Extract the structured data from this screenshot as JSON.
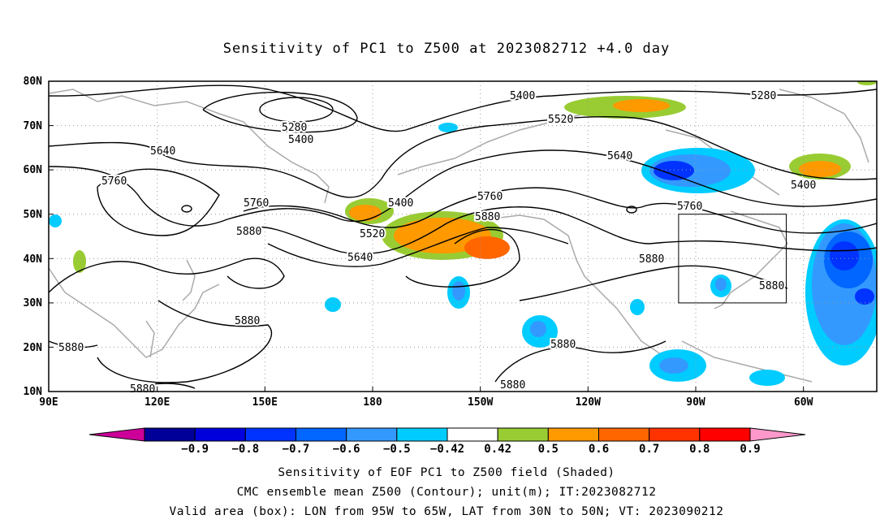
{
  "title": "Sensitivity of PC1 to Z500 at 2023082712 +4.0 day",
  "map": {
    "lat_labels": [
      "80N",
      "70N",
      "60N",
      "50N",
      "40N",
      "30N",
      "20N",
      "10N"
    ],
    "lon_labels": [
      "90E",
      "120E",
      "150E",
      "180",
      "150W",
      "120W",
      "90W",
      "60W"
    ],
    "contour_labels": [
      "5400",
      "5280",
      "5400",
      "5520",
      "5280",
      "5640",
      "5760",
      "5640",
      "5760",
      "5400",
      "5760",
      "5880",
      "5880",
      "5520",
      "5640",
      "5760",
      "5400",
      "5880",
      "5880",
      "5880",
      "5880",
      "5880",
      "5880",
      "5880"
    ],
    "box": {
      "lon_from": "95W",
      "lon_to": "65W",
      "lat_from": "30N",
      "lat_to": "50N"
    }
  },
  "colorbar": {
    "labels": [
      "-0.9",
      "-0.8",
      "-0.7",
      "-0.6",
      "-0.5",
      "-0.42",
      "0.42",
      "0.5",
      "0.6",
      "0.7",
      "0.8",
      "0.9"
    ],
    "colors": [
      "#cc0099",
      "#000099",
      "#0000dd",
      "#0033ff",
      "#0066ff",
      "#3399ff",
      "#00ccff",
      "#ffffff",
      "#99cc33",
      "#ff9900",
      "#ff6600",
      "#ff3300",
      "#ff0000",
      "#ff99cc"
    ]
  },
  "captions": {
    "line1": "Sensitivity of EOF PC1 to Z500 field (Shaded)",
    "line2": "CMC ensemble mean Z500 (Contour); unit(m); IT:2023082712",
    "line3": "Valid area (box): LON from 95W to 65W, LAT from 30N to 50N; VT: 2023090212"
  }
}
